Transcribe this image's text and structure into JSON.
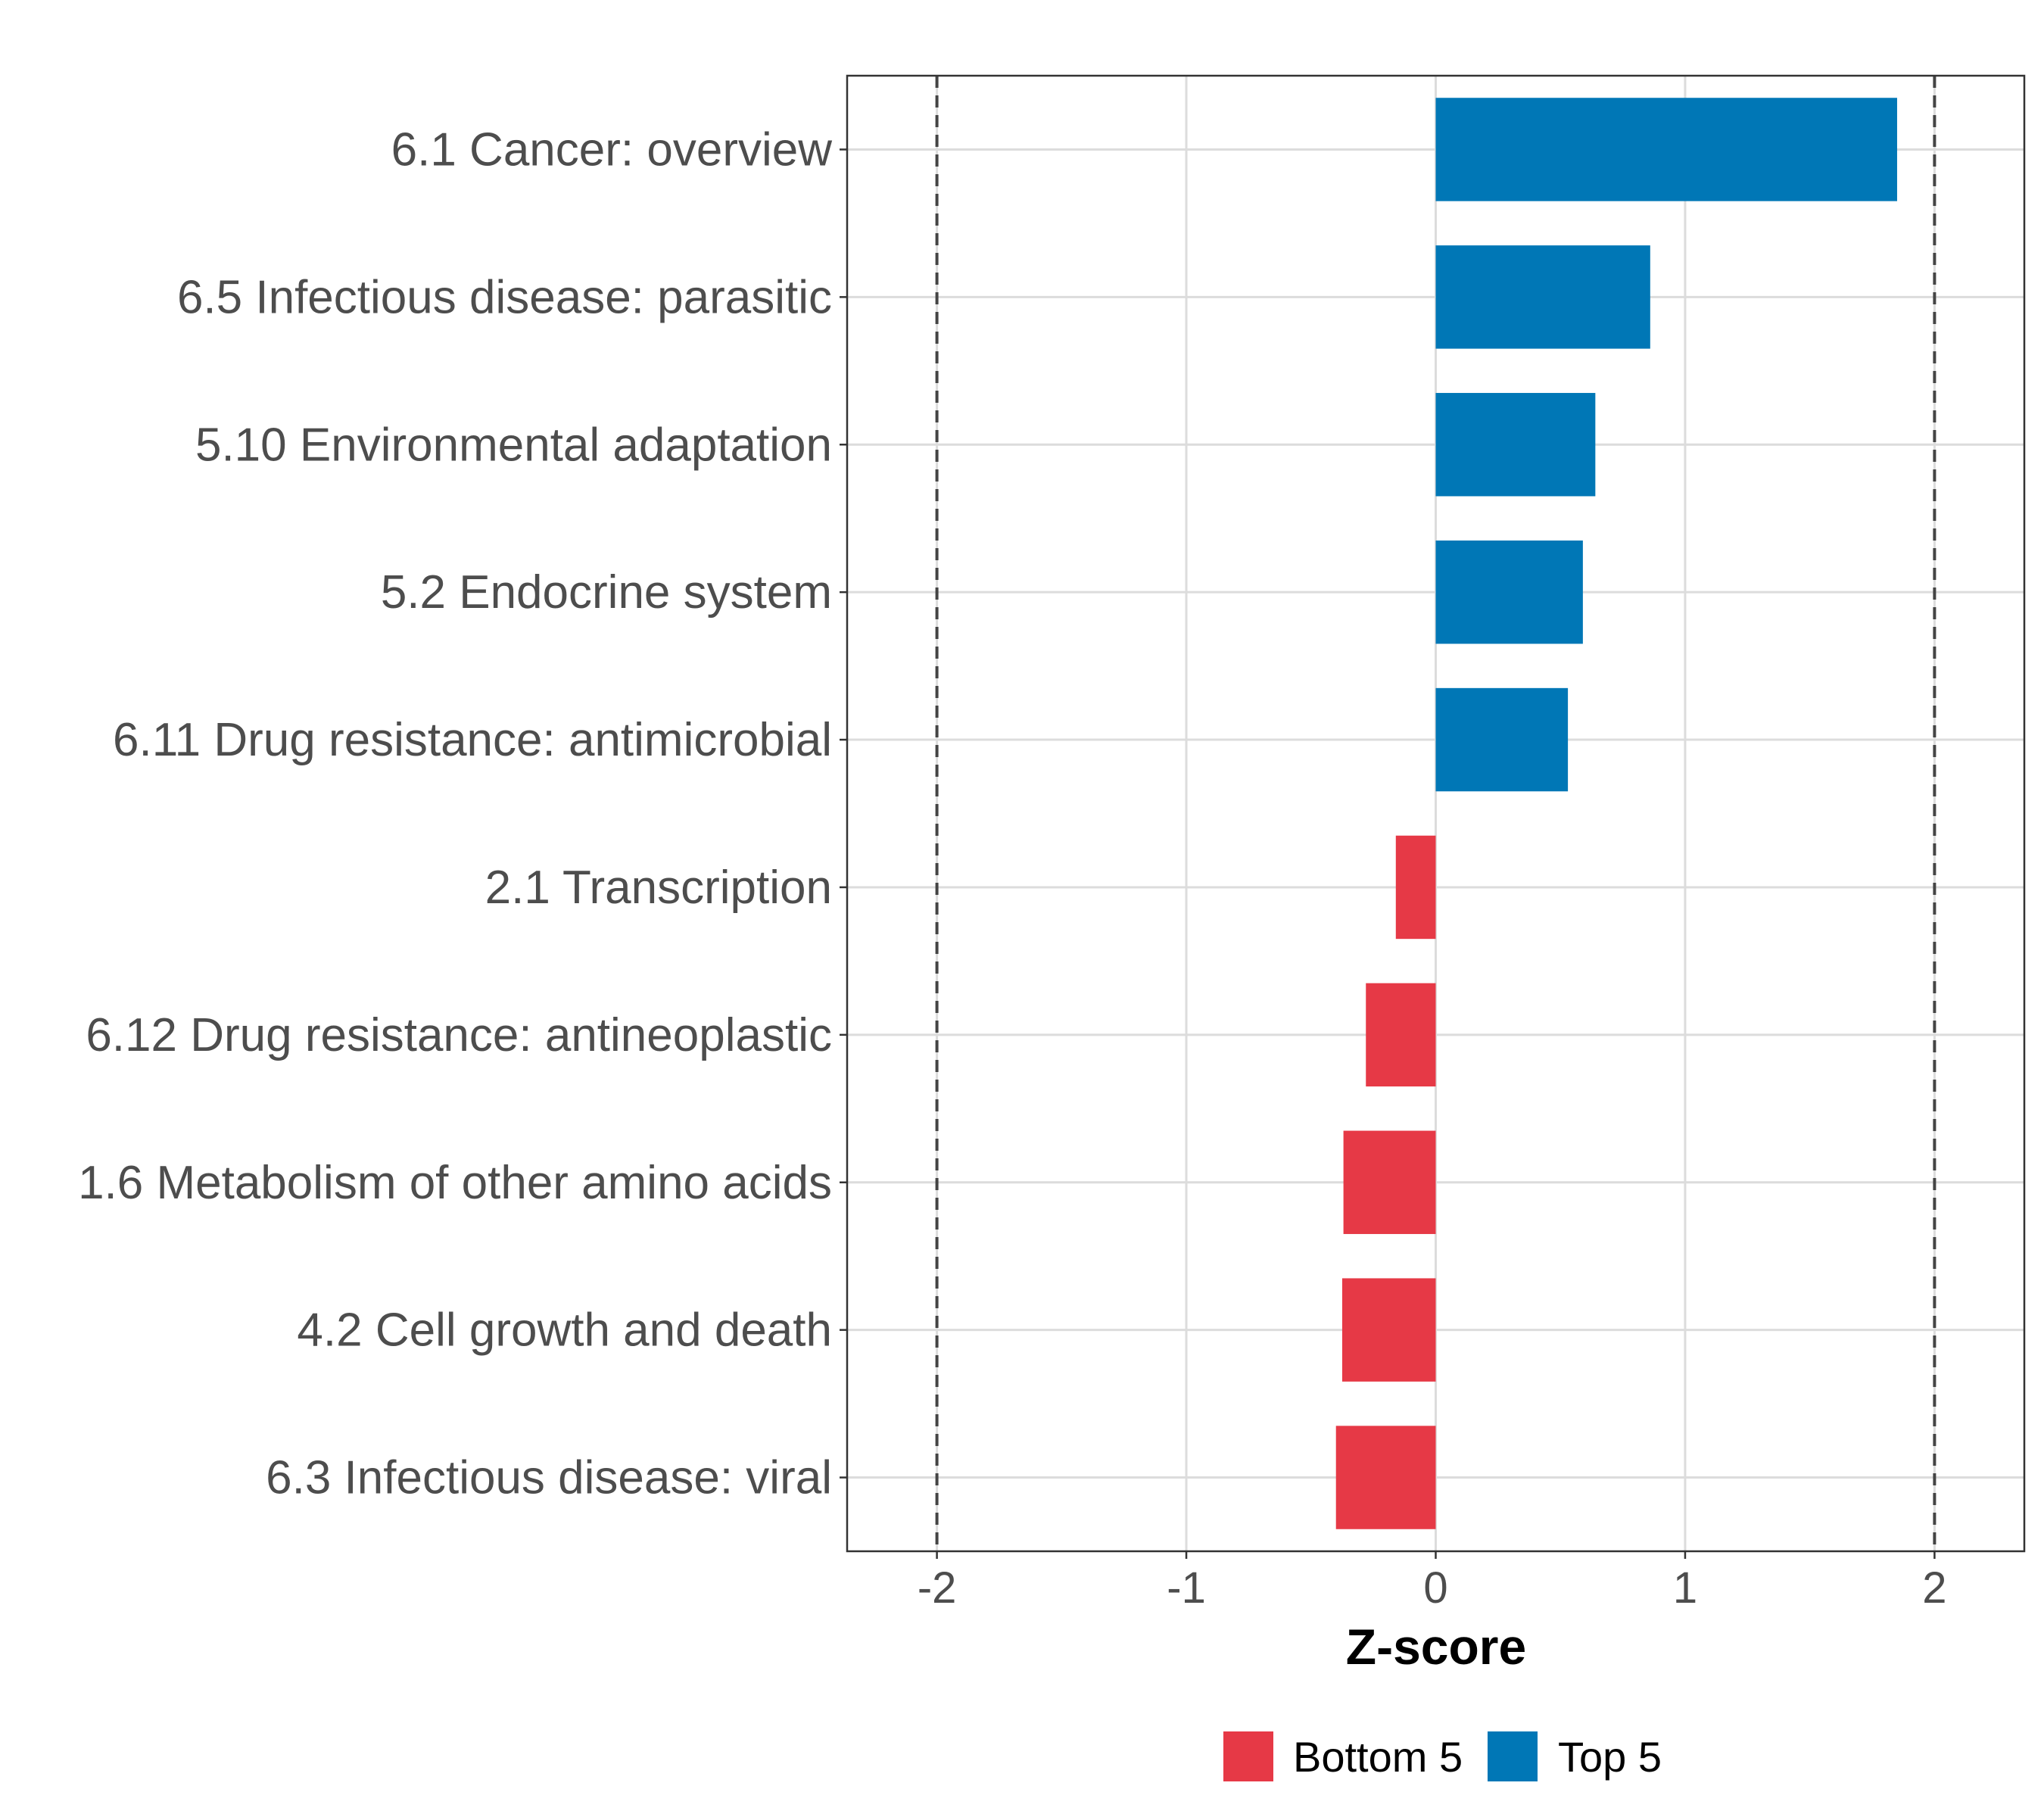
{
  "chart_data": {
    "type": "bar",
    "orientation": "horizontal",
    "title": "",
    "xlabel": "Z-score",
    "ylabel": "",
    "xlim": [
      -2.36,
      2.36
    ],
    "xticks": [
      -2,
      -1,
      0,
      1,
      2
    ],
    "xtick_labels": [
      "-2",
      "-1",
      "0",
      "1",
      "2"
    ],
    "reference_lines": [
      -2,
      2
    ],
    "grid": true,
    "categories": [
      "6.1 Cancer: overview",
      "6.5 Infectious disease: parasitic",
      "5.10 Environmental adaptation",
      "5.2 Endocrine system",
      "6.11 Drug resistance: antimicrobial",
      "2.1 Transcription",
      "6.12 Drug resistance: antineoplastic",
      "1.6 Metabolism of other amino acids",
      "4.2 Cell growth and death",
      "6.3 Infectious disease: viral"
    ],
    "values": [
      1.85,
      0.86,
      0.64,
      0.59,
      0.53,
      -0.16,
      -0.28,
      -0.37,
      -0.375,
      -0.4
    ],
    "groups": [
      "Top 5",
      "Top 5",
      "Top 5",
      "Top 5",
      "Top 5",
      "Bottom 5",
      "Bottom 5",
      "Bottom 5",
      "Bottom 5",
      "Bottom 5"
    ],
    "legend": {
      "placement": "bottom",
      "entries": [
        {
          "label": "Bottom 5",
          "color": "#e63946"
        },
        {
          "label": "Top 5",
          "color": "#0077b6"
        }
      ]
    }
  }
}
